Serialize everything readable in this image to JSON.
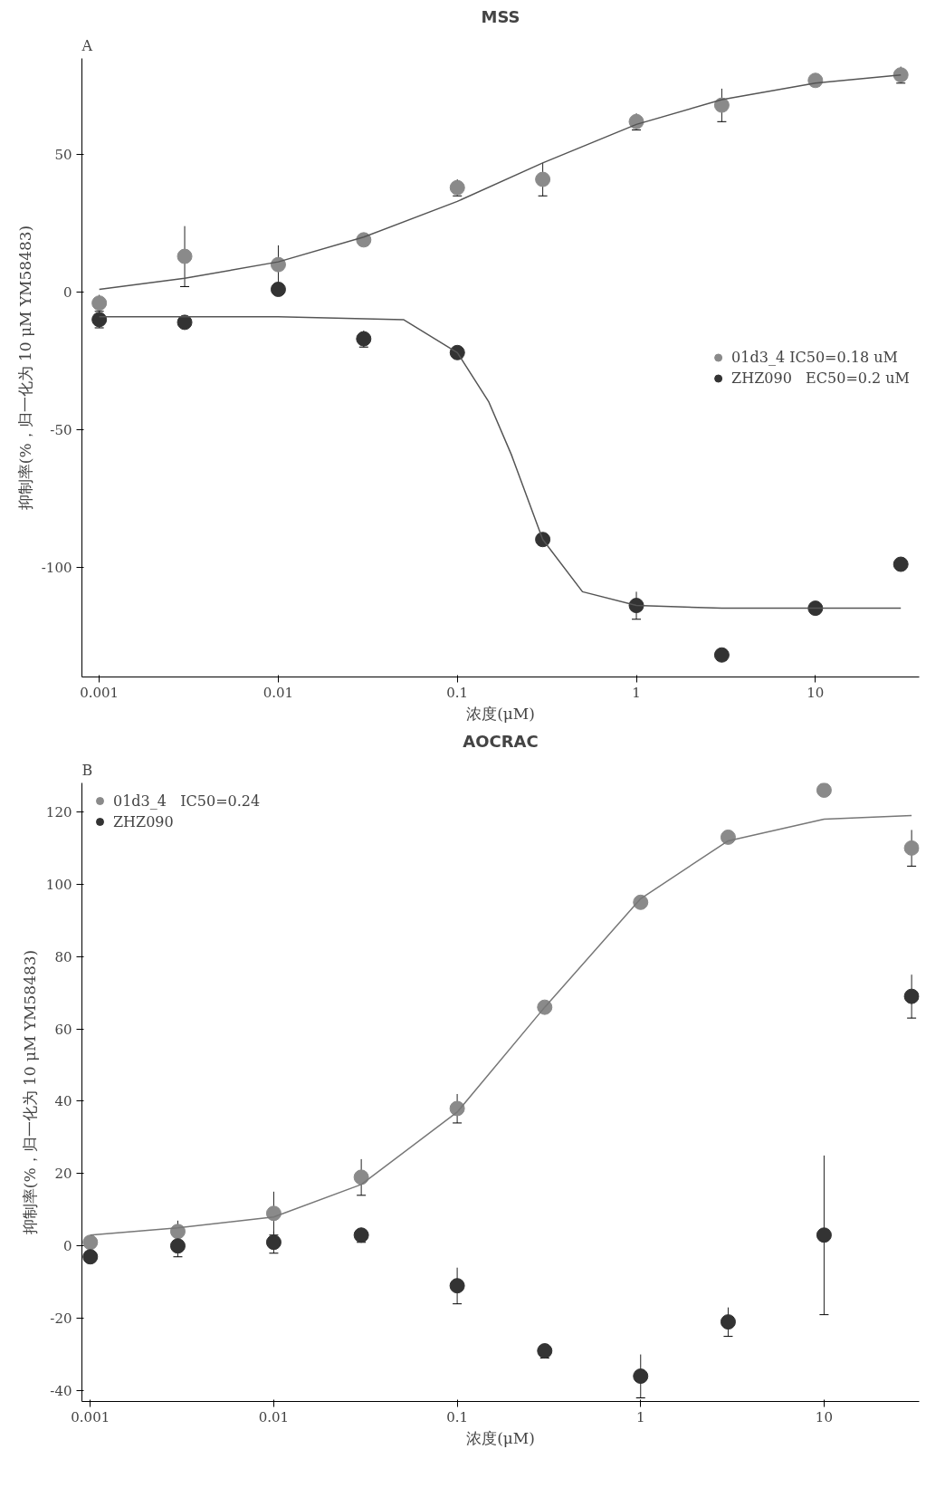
{
  "chart_data": [
    {
      "type": "scatter",
      "title": "MSS",
      "xlabel": "浓度(μM)",
      "ylabel": "抑制率(%，归一化为 10 μM YM58483)",
      "annotations": [
        "A"
      ],
      "log": "x",
      "grid": false,
      "legend": "right",
      "xlim": [
        0.0008,
        38
      ],
      "xticks": [
        0.001,
        0.01,
        0.1,
        1,
        10
      ],
      "ylim": [
        -140,
        85
      ],
      "yticks": [
        -100,
        -50,
        0,
        50
      ],
      "x": [
        0.001,
        0.003,
        0.01,
        0.03,
        0.1,
        0.3,
        1,
        3,
        10,
        30
      ],
      "series": [
        {
          "name": "01d3_4 IC50=0.18 uM",
          "color": "#8a8a8a",
          "marker": "circle",
          "values": [
            -4,
            13,
            10,
            19,
            38,
            41,
            62,
            68,
            77,
            79
          ],
          "errors": [
            3,
            11,
            7,
            2,
            3,
            6,
            3,
            6,
            2,
            3
          ]
        },
        {
          "name": "ZHZ090   EC50=0.2 uM",
          "color": "#333333",
          "marker": "circle",
          "values": [
            -10,
            -11,
            1,
            -17,
            -22,
            -90,
            -114,
            -132,
            -115,
            -99
          ],
          "errors": [
            3,
            1,
            1,
            3,
            2,
            2,
            5,
            2,
            2,
            1
          ]
        },
        {
          "type": "line",
          "color": "#555555",
          "x": [
            0.001,
            0.003,
            0.01,
            0.03,
            0.1,
            0.3,
            1,
            3,
            10,
            30
          ],
          "values": [
            1,
            5,
            11,
            20,
            33,
            47,
            61,
            70,
            76,
            79
          ]
        },
        {
          "type": "line",
          "color": "#555555",
          "x": [
            0.001,
            0.01,
            0.05,
            0.1,
            0.15,
            0.2,
            0.3,
            0.5,
            1,
            3,
            30
          ],
          "values": [
            -9,
            -9,
            -10,
            -22,
            -40,
            -59,
            -90,
            -109,
            -114,
            -115,
            -115
          ]
        }
      ]
    },
    {
      "type": "scatter",
      "title": "AOCRAC",
      "xlabel": "浓度(μM)",
      "ylabel": "抑制率(%，归一化为 10 μM YM58483)",
      "annotations": [
        "B"
      ],
      "log": "x",
      "grid": false,
      "legend": "top left",
      "xlim": [
        0.0009,
        33
      ],
      "xticks": [
        0.001,
        0.01,
        0.1,
        1,
        10
      ],
      "ylim": [
        -43,
        128
      ],
      "yticks": [
        -40,
        -20,
        0,
        20,
        40,
        60,
        80,
        100,
        120
      ],
      "x": [
        0.001,
        0.003,
        0.01,
        0.03,
        0.1,
        0.3,
        1,
        3,
        10,
        30
      ],
      "series": [
        {
          "name": "01d3_4   IC50=0.24",
          "color": "#8a8a8a",
          "marker": "circle",
          "values": [
            1,
            4,
            9,
            19,
            38,
            66,
            95,
            113,
            126,
            110
          ],
          "errors": [
            1,
            3,
            6,
            5,
            4,
            1,
            1,
            1,
            1,
            5
          ]
        },
        {
          "name": "ZHZ090",
          "color": "#333333",
          "marker": "circle",
          "values": [
            -3,
            0,
            1,
            3,
            -11,
            -29,
            -36,
            -21,
            3,
            69
          ],
          "errors": [
            1,
            3,
            3,
            2,
            5,
            2,
            6,
            4,
            22,
            6
          ]
        },
        {
          "type": "line",
          "color": "#777777",
          "x": [
            0.001,
            0.003,
            0.01,
            0.03,
            0.1,
            0.3,
            1,
            3,
            10,
            30
          ],
          "values": [
            3,
            5,
            8,
            17,
            37,
            66,
            96,
            112,
            118,
            119
          ]
        }
      ]
    }
  ]
}
